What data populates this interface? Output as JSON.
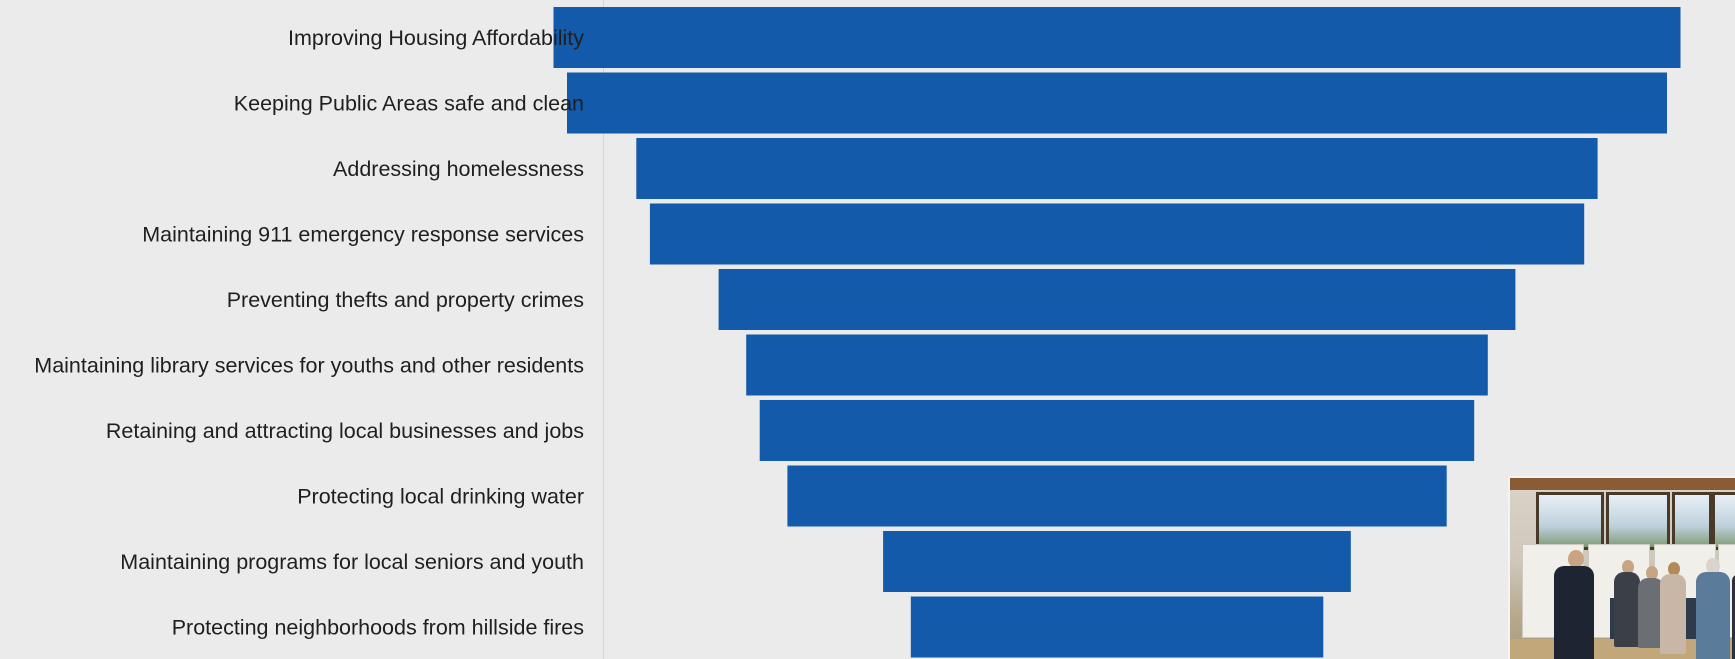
{
  "chart_data": {
    "type": "bar",
    "orientation": "horizontal",
    "style": "funnel (bars centered)",
    "title": "",
    "xlabel": "",
    "ylabel": "",
    "categories": [
      "Improving Housing Affordability",
      "Keeping Public Areas safe and clean",
      "Addressing homelessness",
      "Maintaining 911 emergency response services",
      "Preventing thefts and property crimes",
      "Maintaining library services for youths and other residents",
      "Retaining and attracting local businesses and jobs",
      "Protecting local drinking water",
      "Maintaining programs for local seniors and youth",
      "Protecting neighborhoods from hillside fires"
    ],
    "values": [
      1.0,
      0.976,
      0.853,
      0.829,
      0.707,
      0.658,
      0.634,
      0.585,
      0.415,
      0.366
    ],
    "value_note": "relative bar lengths (no values printed on chart)",
    "bar_color": "#135aab",
    "grid": false,
    "legend": "none"
  },
  "inset_photo": {
    "description_icon": "photo-of-community-meeting"
  }
}
